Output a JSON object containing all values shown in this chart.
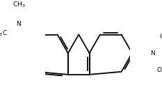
{
  "bg_color": "#ffffff",
  "bond_color": "#000000",
  "bond_lw": 1.3,
  "font_size": 6.5,
  "figsize": [
    2.33,
    1.39
  ],
  "dpi": 100,
  "scale": 0.3
}
